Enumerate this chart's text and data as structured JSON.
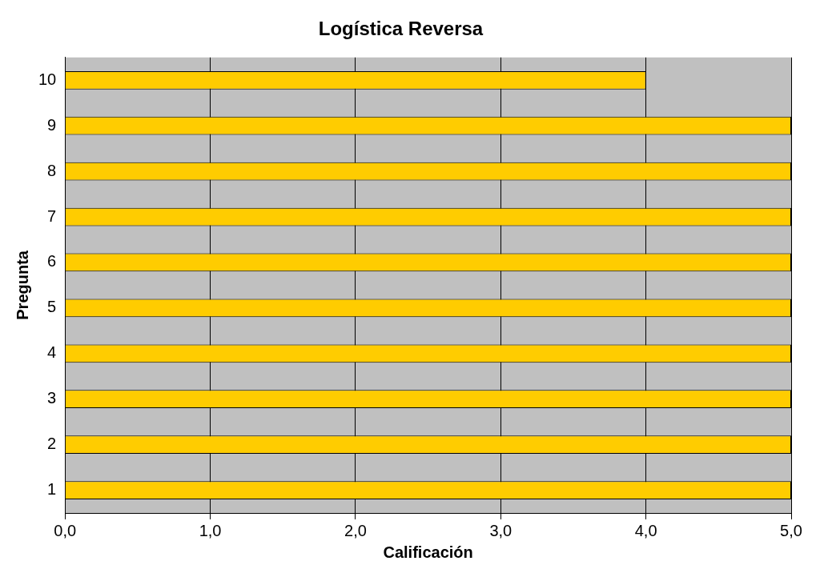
{
  "chart_data": {
    "type": "bar",
    "orientation": "horizontal",
    "title": "Logística Reversa",
    "xlabel": "Calificación",
    "ylabel": "Pregunta",
    "categories": [
      "10",
      "9",
      "8",
      "7",
      "6",
      "5",
      "4",
      "3",
      "2",
      "1"
    ],
    "values": [
      4.0,
      5.0,
      5.0,
      5.0,
      5.0,
      5.0,
      5.0,
      5.0,
      5.0,
      5.0
    ],
    "color": "#ffcc00",
    "xlim": [
      0,
      5
    ],
    "xticks": [
      {
        "value": 0,
        "label": "0,0"
      },
      {
        "value": 1,
        "label": "1,0"
      },
      {
        "value": 2,
        "label": "2,0"
      },
      {
        "value": 3,
        "label": "3,0"
      },
      {
        "value": 4,
        "label": "4,0"
      },
      {
        "value": 5,
        "label": "5,0"
      }
    ],
    "grid": "x",
    "legend": false
  }
}
